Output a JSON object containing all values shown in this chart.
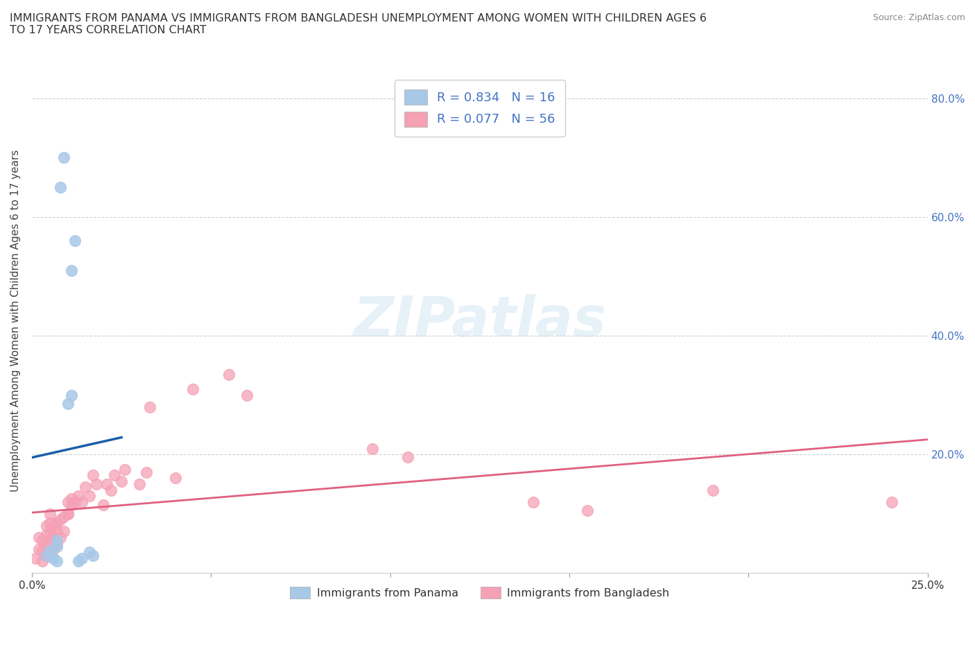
{
  "title": "IMMIGRANTS FROM PANAMA VS IMMIGRANTS FROM BANGLADESH UNEMPLOYMENT AMONG WOMEN WITH CHILDREN AGES 6\nTO 17 YEARS CORRELATION CHART",
  "source": "Source: ZipAtlas.com",
  "ylabel": "Unemployment Among Women with Children Ages 6 to 17 years",
  "xlim": [
    0.0,
    0.25
  ],
  "ylim": [
    0.0,
    0.85
  ],
  "xticks": [
    0.0,
    0.25
  ],
  "yticks_left": [],
  "yticks_right": [
    0.0,
    0.2,
    0.4,
    0.6,
    0.8
  ],
  "panama_R": 0.834,
  "panama_N": 16,
  "bangladesh_R": 0.077,
  "bangladesh_N": 56,
  "panama_color": "#a8c8e8",
  "panama_line_color": "#1a5fa8",
  "bangladesh_color": "#f5a0b5",
  "bangladesh_line_color": "#e06080",
  "legend_label_panama": "Immigrants from Panama",
  "legend_label_bangladesh": "Immigrants from Bangladesh",
  "panama_scatter_x": [
    0.004,
    0.005,
    0.006,
    0.007,
    0.007,
    0.007,
    0.008,
    0.009,
    0.01,
    0.011,
    0.011,
    0.012,
    0.013,
    0.014,
    0.016,
    0.017
  ],
  "panama_scatter_y": [
    0.03,
    0.038,
    0.025,
    0.02,
    0.045,
    0.055,
    0.65,
    0.7,
    0.285,
    0.3,
    0.51,
    0.56,
    0.02,
    0.025,
    0.035,
    0.03
  ],
  "bangladesh_scatter_x": [
    0.001,
    0.002,
    0.002,
    0.003,
    0.003,
    0.003,
    0.004,
    0.004,
    0.004,
    0.004,
    0.005,
    0.005,
    0.005,
    0.005,
    0.005,
    0.006,
    0.006,
    0.006,
    0.007,
    0.007,
    0.007,
    0.008,
    0.008,
    0.009,
    0.009,
    0.01,
    0.01,
    0.01,
    0.011,
    0.011,
    0.012,
    0.013,
    0.014,
    0.015,
    0.016,
    0.017,
    0.018,
    0.02,
    0.021,
    0.022,
    0.023,
    0.025,
    0.026,
    0.03,
    0.032,
    0.033,
    0.04,
    0.045,
    0.055,
    0.06,
    0.095,
    0.105,
    0.14,
    0.155,
    0.19,
    0.24
  ],
  "bangladesh_scatter_y": [
    0.025,
    0.04,
    0.06,
    0.02,
    0.038,
    0.055,
    0.028,
    0.045,
    0.065,
    0.08,
    0.035,
    0.055,
    0.07,
    0.085,
    0.1,
    0.04,
    0.06,
    0.08,
    0.05,
    0.07,
    0.085,
    0.06,
    0.09,
    0.07,
    0.095,
    0.1,
    0.12,
    0.1,
    0.115,
    0.125,
    0.12,
    0.13,
    0.12,
    0.145,
    0.13,
    0.165,
    0.15,
    0.115,
    0.15,
    0.14,
    0.165,
    0.155,
    0.175,
    0.15,
    0.17,
    0.28,
    0.16,
    0.31,
    0.335,
    0.3,
    0.21,
    0.195,
    0.12,
    0.105,
    0.14,
    0.12
  ]
}
